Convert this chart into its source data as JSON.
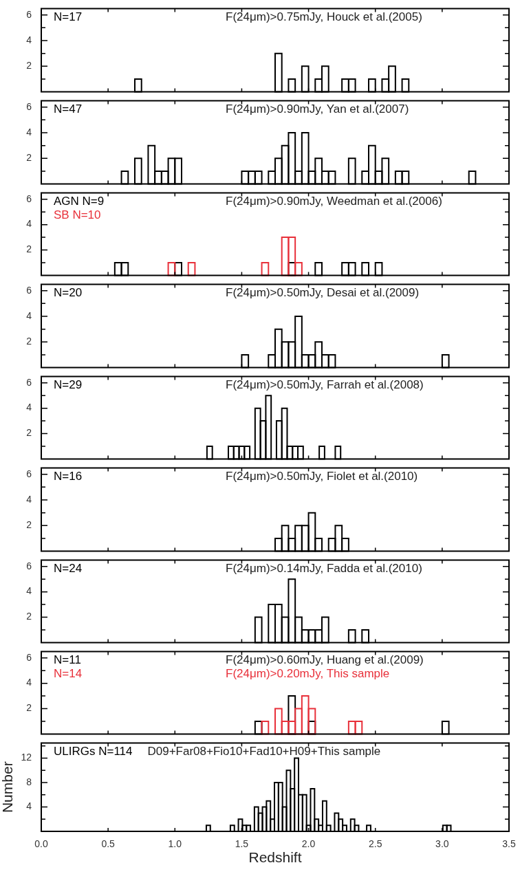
{
  "chart_data": [
    {
      "type": "histogram",
      "bins": [
        0.55,
        0.6,
        0.65,
        0.7,
        0.75,
        0.8,
        0.85,
        0.9,
        0.95,
        1.0,
        1.05,
        1.1,
        1.15,
        1.2,
        1.25,
        1.3,
        1.35,
        1.4,
        1.45,
        1.5,
        1.55,
        1.6,
        1.65,
        1.7,
        1.75,
        1.8,
        1.85,
        1.9,
        1.95,
        2.0,
        2.05,
        2.1,
        2.15,
        2.2,
        2.25,
        2.3,
        2.35,
        2.4,
        2.45,
        2.5,
        2.55,
        2.6,
        2.65,
        2.7,
        2.75,
        2.8,
        2.85,
        2.9,
        2.95,
        3.0,
        3.05,
        3.1,
        3.15,
        3.2,
        3.25
      ],
      "series": [
        {
          "name": "N=17",
          "color": "#000000",
          "values": [
            0,
            0,
            0,
            1,
            0,
            0,
            0,
            0,
            0,
            0,
            0,
            0,
            0,
            0,
            0,
            0,
            0,
            0,
            0,
            0,
            0,
            0,
            0,
            0,
            3,
            0,
            1,
            0,
            2,
            0,
            1,
            2,
            0,
            0,
            1,
            1,
            0,
            0,
            1,
            0,
            1,
            2,
            0,
            1,
            0,
            0,
            0,
            0,
            0,
            0,
            0,
            0,
            0,
            0
          ]
        }
      ],
      "annotations": [
        "F(24μm)>0.75mJy, Houck et al.(2005)"
      ],
      "xlim": [
        0,
        3.5
      ],
      "xticks": [
        0,
        0.5,
        1,
        1.5,
        2,
        2.5,
        3,
        3.5
      ],
      "ylim": [
        0,
        6.5
      ],
      "yticks": [
        {
          "value": 1,
          "label": null
        },
        2,
        {
          "value": 3,
          "label": null
        },
        4,
        {
          "value": 5,
          "label": null
        },
        6
      ],
      "tick_labels": "y"
    },
    {
      "type": "histogram",
      "bins": [
        0.55,
        0.6,
        0.65,
        0.7,
        0.75,
        0.8,
        0.85,
        0.9,
        0.95,
        1.0,
        1.05,
        1.1,
        1.15,
        1.2,
        1.25,
        1.3,
        1.35,
        1.4,
        1.45,
        1.5,
        1.55,
        1.6,
        1.65,
        1.7,
        1.75,
        1.8,
        1.85,
        1.9,
        1.95,
        2.0,
        2.05,
        2.1,
        2.15,
        2.2,
        2.25,
        2.3,
        2.35,
        2.4,
        2.45,
        2.5,
        2.55,
        2.6,
        2.65,
        2.7,
        2.75,
        2.8,
        2.85,
        2.9,
        2.95,
        3.0,
        3.05,
        3.1,
        3.15,
        3.2,
        3.25
      ],
      "series": [
        {
          "name": "N=47",
          "color": "#000000",
          "values": [
            0,
            1,
            0,
            2,
            0,
            3,
            1,
            1,
            2,
            2,
            0,
            0,
            0,
            0,
            0,
            0,
            0,
            0,
            0,
            1,
            1,
            1,
            0,
            1,
            2,
            3,
            4,
            1,
            4,
            1,
            2,
            1,
            1,
            0,
            0,
            2,
            0,
            1,
            3,
            1,
            2,
            0,
            1,
            1,
            0,
            0,
            0,
            0,
            0,
            0,
            0,
            0,
            0,
            1
          ]
        }
      ],
      "annotations": [
        "F(24μm)>0.90mJy, Yan et al.(2007)"
      ],
      "xlim": [
        0,
        3.5
      ],
      "xticks": [
        0,
        0.5,
        1,
        1.5,
        2,
        2.5,
        3,
        3.5
      ],
      "ylim": [
        0,
        6.5
      ],
      "yticks": [
        {
          "value": 1,
          "label": null
        },
        2,
        {
          "value": 3,
          "label": null
        },
        4,
        {
          "value": 5,
          "label": null
        },
        6
      ],
      "tick_labels": "y"
    },
    {
      "type": "histogram",
      "bins": [
        0.55,
        0.6,
        0.65,
        0.7,
        0.75,
        0.8,
        0.85,
        0.9,
        0.95,
        1.0,
        1.05,
        1.1,
        1.15,
        1.2,
        1.25,
        1.3,
        1.35,
        1.4,
        1.45,
        1.5,
        1.55,
        1.6,
        1.65,
        1.7,
        1.75,
        1.8,
        1.85,
        1.9,
        1.95,
        2.0,
        2.05,
        2.1,
        2.15,
        2.2,
        2.25,
        2.3,
        2.35,
        2.4,
        2.45,
        2.5,
        2.55,
        2.6,
        2.65,
        2.7,
        2.75,
        2.8,
        2.85,
        2.9,
        2.95,
        3.0,
        3.05,
        3.1,
        3.15,
        3.2,
        3.25
      ],
      "series": [
        {
          "name": "AGN N=9",
          "color": "#000000",
          "values": [
            1,
            1,
            0,
            0,
            0,
            0,
            0,
            0,
            0,
            1,
            0,
            0,
            0,
            0,
            0,
            0,
            0,
            0,
            0,
            0,
            0,
            0,
            0,
            0,
            0,
            0,
            1,
            0,
            0,
            0,
            1,
            0,
            0,
            0,
            1,
            1,
            0,
            1,
            0,
            1,
            0,
            0,
            0,
            0,
            0,
            0,
            0,
            0,
            0,
            0,
            0,
            0,
            0,
            0
          ]
        },
        {
          "name": "SB N=10",
          "color": "#e8303a",
          "values": [
            0,
            0,
            0,
            0,
            0,
            0,
            0,
            0,
            1,
            0,
            0,
            1,
            0,
            0,
            0,
            0,
            0,
            0,
            0,
            0,
            0,
            0,
            1,
            0,
            0,
            3,
            3,
            1,
            0,
            0,
            0,
            0,
            0,
            0,
            0,
            0,
            0,
            0,
            0,
            0,
            0,
            0,
            0,
            0,
            0,
            0,
            0,
            0,
            0,
            0,
            0,
            0,
            0,
            0
          ]
        }
      ],
      "annotations": [
        "F(24μm)>0.90mJy, Weedman et al.(2006)"
      ],
      "xlim": [
        0,
        3.5
      ],
      "xticks": [
        0,
        0.5,
        1,
        1.5,
        2,
        2.5,
        3,
        3.5
      ],
      "ylim": [
        0,
        6.5
      ],
      "yticks": [
        {
          "value": 1,
          "label": null
        },
        2,
        {
          "value": 3,
          "label": null
        },
        4,
        {
          "value": 5,
          "label": null
        },
        6
      ],
      "tick_labels": "y"
    },
    {
      "type": "histogram",
      "bins": [
        0.55,
        0.6,
        0.65,
        0.7,
        0.75,
        0.8,
        0.85,
        0.9,
        0.95,
        1.0,
        1.05,
        1.1,
        1.15,
        1.2,
        1.25,
        1.3,
        1.35,
        1.4,
        1.45,
        1.5,
        1.55,
        1.6,
        1.65,
        1.7,
        1.75,
        1.8,
        1.85,
        1.9,
        1.95,
        2.0,
        2.05,
        2.1,
        2.15,
        2.2,
        2.25,
        2.3,
        2.35,
        2.4,
        2.45,
        2.5,
        2.55,
        2.6,
        2.65,
        2.7,
        2.75,
        2.8,
        2.85,
        2.9,
        2.95,
        3.0,
        3.05,
        3.1,
        3.15,
        3.2,
        3.25
      ],
      "series": [
        {
          "name": "N=20",
          "color": "#000000",
          "values": [
            0,
            0,
            0,
            0,
            0,
            0,
            0,
            0,
            0,
            0,
            0,
            0,
            0,
            0,
            0,
            0,
            0,
            0,
            0,
            1,
            0,
            0,
            0,
            1,
            3,
            2,
            2,
            4,
            1,
            1,
            2,
            1,
            1,
            0,
            0,
            0,
            0,
            0,
            0,
            0,
            0,
            0,
            0,
            0,
            0,
            0,
            0,
            0,
            0,
            1,
            0,
            0,
            0,
            0
          ]
        }
      ],
      "annotations": [
        "F(24μm)>0.50mJy, Desai et al.(2009)"
      ],
      "xlim": [
        0,
        3.5
      ],
      "xticks": [
        0,
        0.5,
        1,
        1.5,
        2,
        2.5,
        3,
        3.5
      ],
      "ylim": [
        0,
        6.5
      ],
      "yticks": [
        {
          "value": 1,
          "label": null
        },
        2,
        {
          "value": 3,
          "label": null
        },
        4,
        {
          "value": 5,
          "label": null
        },
        6
      ],
      "tick_labels": "y"
    },
    {
      "type": "histogram",
      "bins": [
        1.24,
        1.28,
        1.32,
        1.36,
        1.4,
        1.44,
        1.48,
        1.52,
        1.56,
        1.6,
        1.64,
        1.68,
        1.72,
        1.76,
        1.8,
        1.84,
        1.88,
        1.92,
        1.96,
        2.0,
        2.04,
        2.08,
        2.12,
        2.16,
        2.2,
        2.24
      ],
      "series": [
        {
          "name": "N=29",
          "color": "#000000",
          "values": [
            1,
            0,
            0,
            0,
            1,
            1,
            1,
            1,
            0,
            4,
            3,
            5,
            0,
            3,
            4,
            1,
            1,
            1,
            0,
            0,
            0,
            1,
            0,
            0,
            1
          ]
        }
      ],
      "annotations": [
        "F(24μm)>0.50mJy, Farrah et al.(2008)"
      ],
      "xlim": [
        0,
        3.5
      ],
      "xticks": [
        0,
        0.5,
        1,
        1.5,
        2,
        2.5,
        3,
        3.5
      ],
      "ylim": [
        0,
        6.5
      ],
      "yticks": [
        {
          "value": 1,
          "label": null
        },
        2,
        {
          "value": 3,
          "label": null
        },
        4,
        {
          "value": 5,
          "label": null
        },
        6
      ],
      "tick_labels": "y"
    },
    {
      "type": "histogram",
      "bins": [
        0.55,
        0.6,
        0.65,
        0.7,
        0.75,
        0.8,
        0.85,
        0.9,
        0.95,
        1.0,
        1.05,
        1.1,
        1.15,
        1.2,
        1.25,
        1.3,
        1.35,
        1.4,
        1.45,
        1.5,
        1.55,
        1.6,
        1.65,
        1.7,
        1.75,
        1.8,
        1.85,
        1.9,
        1.95,
        2.0,
        2.05,
        2.1,
        2.15,
        2.2,
        2.25,
        2.3,
        2.35,
        2.4,
        2.45,
        2.5,
        2.55,
        2.6,
        2.65,
        2.7,
        2.75,
        2.8,
        2.85,
        2.9,
        2.95,
        3.0,
        3.05,
        3.1,
        3.15,
        3.2,
        3.25
      ],
      "series": [
        {
          "name": "N=16",
          "color": "#000000",
          "values": [
            0,
            0,
            0,
            0,
            0,
            0,
            0,
            0,
            0,
            0,
            0,
            0,
            0,
            0,
            0,
            0,
            0,
            0,
            0,
            0,
            0,
            0,
            0,
            0,
            1,
            2,
            1,
            2,
            2,
            3,
            1,
            0,
            1,
            2,
            1,
            0,
            0,
            0,
            0,
            0,
            0,
            0,
            0,
            0,
            0,
            0,
            0,
            0,
            0,
            0,
            0,
            0,
            0,
            0
          ]
        }
      ],
      "annotations": [
        "F(24μm)>0.50mJy, Fiolet et al.(2010)"
      ],
      "xlim": [
        0,
        3.5
      ],
      "xticks": [
        0,
        0.5,
        1,
        1.5,
        2,
        2.5,
        3,
        3.5
      ],
      "ylim": [
        0,
        6.5
      ],
      "yticks": [
        {
          "value": 1,
          "label": null
        },
        2,
        {
          "value": 3,
          "label": null
        },
        4,
        {
          "value": 5,
          "label": null
        },
        6
      ],
      "tick_labels": "y"
    },
    {
      "type": "histogram",
      "bins": [
        0.55,
        0.6,
        0.65,
        0.7,
        0.75,
        0.8,
        0.85,
        0.9,
        0.95,
        1.0,
        1.05,
        1.1,
        1.15,
        1.2,
        1.25,
        1.3,
        1.35,
        1.4,
        1.45,
        1.5,
        1.55,
        1.6,
        1.65,
        1.7,
        1.75,
        1.8,
        1.85,
        1.9,
        1.95,
        2.0,
        2.05,
        2.1,
        2.15,
        2.2,
        2.25,
        2.3,
        2.35,
        2.4,
        2.45,
        2.5,
        2.55,
        2.6,
        2.65,
        2.7,
        2.75,
        2.8,
        2.85,
        2.9,
        2.95,
        3.0,
        3.05,
        3.1,
        3.15,
        3.2,
        3.25
      ],
      "series": [
        {
          "name": "N=24",
          "color": "#000000",
          "values": [
            0,
            0,
            0,
            0,
            0,
            0,
            0,
            0,
            0,
            0,
            0,
            0,
            0,
            0,
            0,
            0,
            0,
            0,
            0,
            0,
            0,
            2,
            0,
            3,
            3,
            2,
            5,
            2,
            1,
            1,
            1,
            2,
            0,
            0,
            0,
            1,
            0,
            1,
            0,
            0,
            0,
            0,
            0,
            0,
            0,
            0,
            0,
            0,
            0,
            0,
            0,
            0,
            0,
            0
          ]
        }
      ],
      "annotations": [
        "F(24μm)>0.14mJy, Fadda et al.(2010)"
      ],
      "xlim": [
        0,
        3.5
      ],
      "xticks": [
        0,
        0.5,
        1,
        1.5,
        2,
        2.5,
        3,
        3.5
      ],
      "ylim": [
        0,
        6.5
      ],
      "yticks": [
        {
          "value": 1,
          "label": null
        },
        2,
        {
          "value": 3,
          "label": null
        },
        4,
        {
          "value": 5,
          "label": null
        },
        6
      ],
      "tick_labels": "y"
    },
    {
      "type": "histogram",
      "bins": [
        0.55,
        0.6,
        0.65,
        0.7,
        0.75,
        0.8,
        0.85,
        0.9,
        0.95,
        1.0,
        1.05,
        1.1,
        1.15,
        1.2,
        1.25,
        1.3,
        1.35,
        1.4,
        1.45,
        1.5,
        1.55,
        1.6,
        1.65,
        1.7,
        1.75,
        1.8,
        1.85,
        1.9,
        1.95,
        2.0,
        2.05,
        2.1,
        2.15,
        2.2,
        2.25,
        2.3,
        2.35,
        2.4,
        2.45,
        2.5,
        2.55,
        2.6,
        2.65,
        2.7,
        2.75,
        2.8,
        2.85,
        2.9,
        2.95,
        3.0,
        3.05,
        3.1,
        3.15,
        3.2,
        3.25
      ],
      "series": [
        {
          "name": "N=11",
          "color": "#000000",
          "values": [
            0,
            0,
            0,
            0,
            0,
            0,
            0,
            0,
            0,
            0,
            0,
            0,
            0,
            0,
            0,
            0,
            0,
            0,
            0,
            0,
            0,
            1,
            0,
            0,
            null,
            null,
            3,
            null,
            0,
            1,
            0,
            0,
            0,
            0,
            0,
            0,
            0,
            0,
            0,
            0,
            0,
            0,
            0,
            0,
            0,
            0,
            0,
            0,
            0,
            1,
            0,
            0,
            0,
            0
          ]
        },
        {
          "name": "N=14",
          "color": "#e8303a",
          "values": [
            0,
            0,
            0,
            0,
            0,
            0,
            0,
            0,
            0,
            0,
            0,
            0,
            0,
            0,
            0,
            0,
            0,
            0,
            0,
            0,
            0,
            0,
            1,
            0,
            2,
            1,
            1,
            2,
            3,
            2,
            0,
            0,
            0,
            0,
            0,
            1,
            1,
            0,
            0,
            0,
            0,
            0,
            0,
            0,
            0,
            0,
            0,
            0,
            0,
            0,
            0,
            0,
            0,
            0
          ]
        }
      ],
      "annotations": [
        "F(24μm)>0.60mJy, Huang et al.(2009)",
        "F(24μm)>0.20mJy, This sample"
      ],
      "xlim": [
        0,
        3.5
      ],
      "xticks": [
        0,
        0.5,
        1,
        1.5,
        2,
        2.5,
        3,
        3.5
      ],
      "ylim": [
        0,
        6.5
      ],
      "yticks": [
        {
          "value": 1,
          "label": null
        },
        2,
        {
          "value": 3,
          "label": null
        },
        4,
        {
          "value": 5,
          "label": null
        },
        6
      ],
      "tick_labels": "y"
    },
    {
      "type": "histogram",
      "bins": [
        1.235,
        1.265,
        1.295,
        1.325,
        1.355,
        1.385,
        1.415,
        1.445,
        1.475,
        1.505,
        1.535,
        1.565,
        1.595,
        1.625,
        1.655,
        1.685,
        1.715,
        1.745,
        1.775,
        1.805,
        1.835,
        1.865,
        1.895,
        1.925,
        1.955,
        1.985,
        2.015,
        2.045,
        2.075,
        2.105,
        2.135,
        2.165,
        2.195,
        2.225,
        2.255,
        2.285,
        2.315,
        2.345,
        2.375,
        2.405,
        2.435,
        2.465,
        2.495,
        2.525,
        2.555,
        2.585,
        2.615,
        2.645,
        2.675,
        2.705,
        2.735,
        2.765,
        2.795,
        2.825,
        2.855,
        2.885,
        2.915,
        2.945,
        2.975,
        3.005,
        3.035,
        3.065
      ],
      "series": [
        {
          "name": "ULIRGs N=114",
          "color": "#000000",
          "values": [
            1,
            0,
            0,
            0,
            0,
            0,
            1,
            0,
            2,
            1,
            1,
            0,
            4,
            3,
            4,
            5,
            2,
            8,
            8,
            4,
            10,
            7,
            12,
            6,
            6,
            1,
            7,
            2,
            1,
            5,
            1,
            0,
            3,
            2,
            1,
            0,
            2,
            1,
            0,
            0,
            1,
            0,
            0,
            0,
            0,
            0,
            0,
            0,
            0,
            0,
            0,
            0,
            0,
            0,
            0,
            0,
            0,
            0,
            0,
            1,
            1
          ]
        }
      ],
      "annotations": [
        "D09+Far08+Fio10+Fad10+H09+",
        "This sample"
      ],
      "xlabel": "Redshift",
      "ylabel": "Number",
      "xlim": [
        0,
        3.5
      ],
      "xticks": [
        {
          "value": 0,
          "label": "0.0"
        },
        0.5,
        {
          "value": 1,
          "label": "1.0"
        },
        1.5,
        {
          "value": 2,
          "label": "2.0"
        },
        2.5,
        {
          "value": 3,
          "label": "3.0"
        },
        3.5
      ],
      "ylim": [
        0,
        14.5
      ],
      "yticks": [
        {
          "value": 2,
          "label": null
        },
        4,
        {
          "value": 6,
          "label": null
        },
        8,
        {
          "value": 10,
          "label": null
        },
        12,
        {
          "value": 14,
          "label": null
        }
      ]
    }
  ]
}
